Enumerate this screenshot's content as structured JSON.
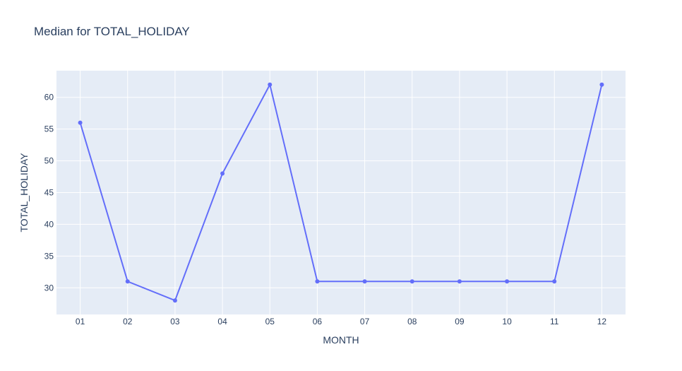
{
  "chart_data": {
    "type": "line",
    "title": "Median for TOTAL_HOLIDAY",
    "xlabel": "MONTH",
    "ylabel": "TOTAL_HOLIDAY",
    "categories": [
      "01",
      "02",
      "03",
      "04",
      "05",
      "06",
      "07",
      "08",
      "09",
      "10",
      "11",
      "12"
    ],
    "series": [
      {
        "values": [
          56,
          31,
          28,
          48,
          62,
          31,
          31,
          31,
          31,
          31,
          31,
          62
        ]
      }
    ],
    "ylim": [
      25.8,
      64.2
    ],
    "yticks": [
      30,
      35,
      40,
      45,
      50,
      55,
      60
    ],
    "grid": true,
    "colors": {
      "line": "#636efa",
      "plot_bg": "#e5ecf6",
      "grid": "#ffffff",
      "text": "#2a3f5f"
    }
  }
}
